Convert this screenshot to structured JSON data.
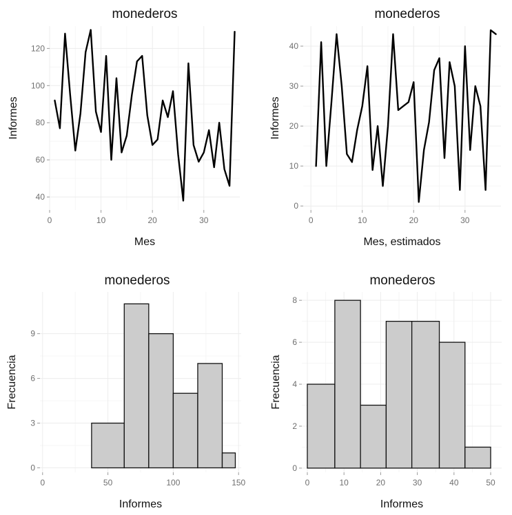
{
  "chart_data": [
    {
      "type": "line",
      "title": "monederos",
      "xlabel": "Mes",
      "ylabel": "Informes",
      "xlim": [
        0,
        37
      ],
      "ylim": [
        33,
        132
      ],
      "xticks": [
        0,
        10,
        20,
        30
      ],
      "yticks": [
        40,
        60,
        80,
        100,
        120
      ],
      "grid": true,
      "x": [
        1,
        2,
        3,
        4,
        5,
        6,
        7,
        8,
        9,
        10,
        11,
        12,
        13,
        14,
        15,
        16,
        17,
        18,
        19,
        20,
        21,
        22,
        23,
        24,
        25,
        26,
        27,
        28,
        29,
        30,
        31,
        32,
        33,
        34,
        35,
        36
      ],
      "y": [
        92,
        77,
        128,
        95,
        65,
        85,
        118,
        130,
        86,
        75,
        116,
        60,
        104,
        64,
        73,
        95,
        113,
        116,
        84,
        68,
        71,
        92,
        83,
        97,
        63,
        38,
        112,
        68,
        59,
        64,
        76,
        56,
        80,
        55,
        46,
        129
      ]
    },
    {
      "type": "line",
      "title": "monederos",
      "xlabel": "Mes, estimados",
      "ylabel": "Informes",
      "xlim": [
        -1.5,
        37
      ],
      "ylim": [
        -1,
        45
      ],
      "xticks": [
        0,
        10,
        20,
        30
      ],
      "yticks": [
        0,
        10,
        20,
        30,
        40
      ],
      "grid": true,
      "x": [
        1,
        2,
        3,
        4,
        5,
        6,
        7,
        8,
        9,
        10,
        11,
        12,
        13,
        14,
        15,
        16,
        17,
        18,
        19,
        20,
        21,
        22,
        23,
        24,
        25,
        26,
        27,
        28,
        29,
        30,
        31,
        32,
        33,
        34,
        35,
        36
      ],
      "y": [
        10,
        41,
        10,
        26,
        43,
        30,
        13,
        11,
        19,
        25,
        35,
        9,
        20,
        5,
        20,
        43,
        24,
        25,
        26,
        31,
        1,
        14,
        21,
        34,
        37,
        12,
        36,
        30,
        4,
        40,
        14,
        30,
        25,
        4,
        44,
        43
      ]
    },
    {
      "type": "bar",
      "title": "monederos",
      "xlabel": "Informes",
      "ylabel": "Frecuencia",
      "xlim": [
        -2,
        152
      ],
      "ylim": [
        -0.3,
        11.8
      ],
      "xticks": [
        0,
        50,
        100,
        150
      ],
      "yticks": [
        0,
        3,
        6,
        9
      ],
      "grid": true,
      "bins": [
        [
          0,
          37.5
        ],
        [
          37.5,
          62.5
        ],
        [
          62.5,
          81.25
        ],
        [
          81.25,
          100
        ],
        [
          100,
          118.75
        ],
        [
          118.75,
          137.5
        ],
        [
          137.5,
          147.5
        ]
      ],
      "values": [
        0,
        3,
        11,
        9,
        5,
        7,
        1
      ]
    },
    {
      "type": "bar",
      "title": "monederos",
      "xlabel": "Informes",
      "ylabel": "Frecuencia",
      "xlim": [
        -1.5,
        53
      ],
      "ylim": [
        -0.2,
        8.4
      ],
      "xticks": [
        0,
        10,
        20,
        30,
        40,
        50
      ],
      "yticks": [
        0,
        2,
        4,
        6,
        8
      ],
      "grid": true,
      "bins": [
        [
          0,
          7.5
        ],
        [
          7.5,
          14.5
        ],
        [
          14.5,
          21.5
        ],
        [
          21.5,
          28.5
        ],
        [
          28.5,
          36
        ],
        [
          36,
          43
        ],
        [
          43,
          50
        ]
      ],
      "values": [
        4,
        8,
        3,
        7,
        7,
        6,
        1
      ]
    }
  ]
}
